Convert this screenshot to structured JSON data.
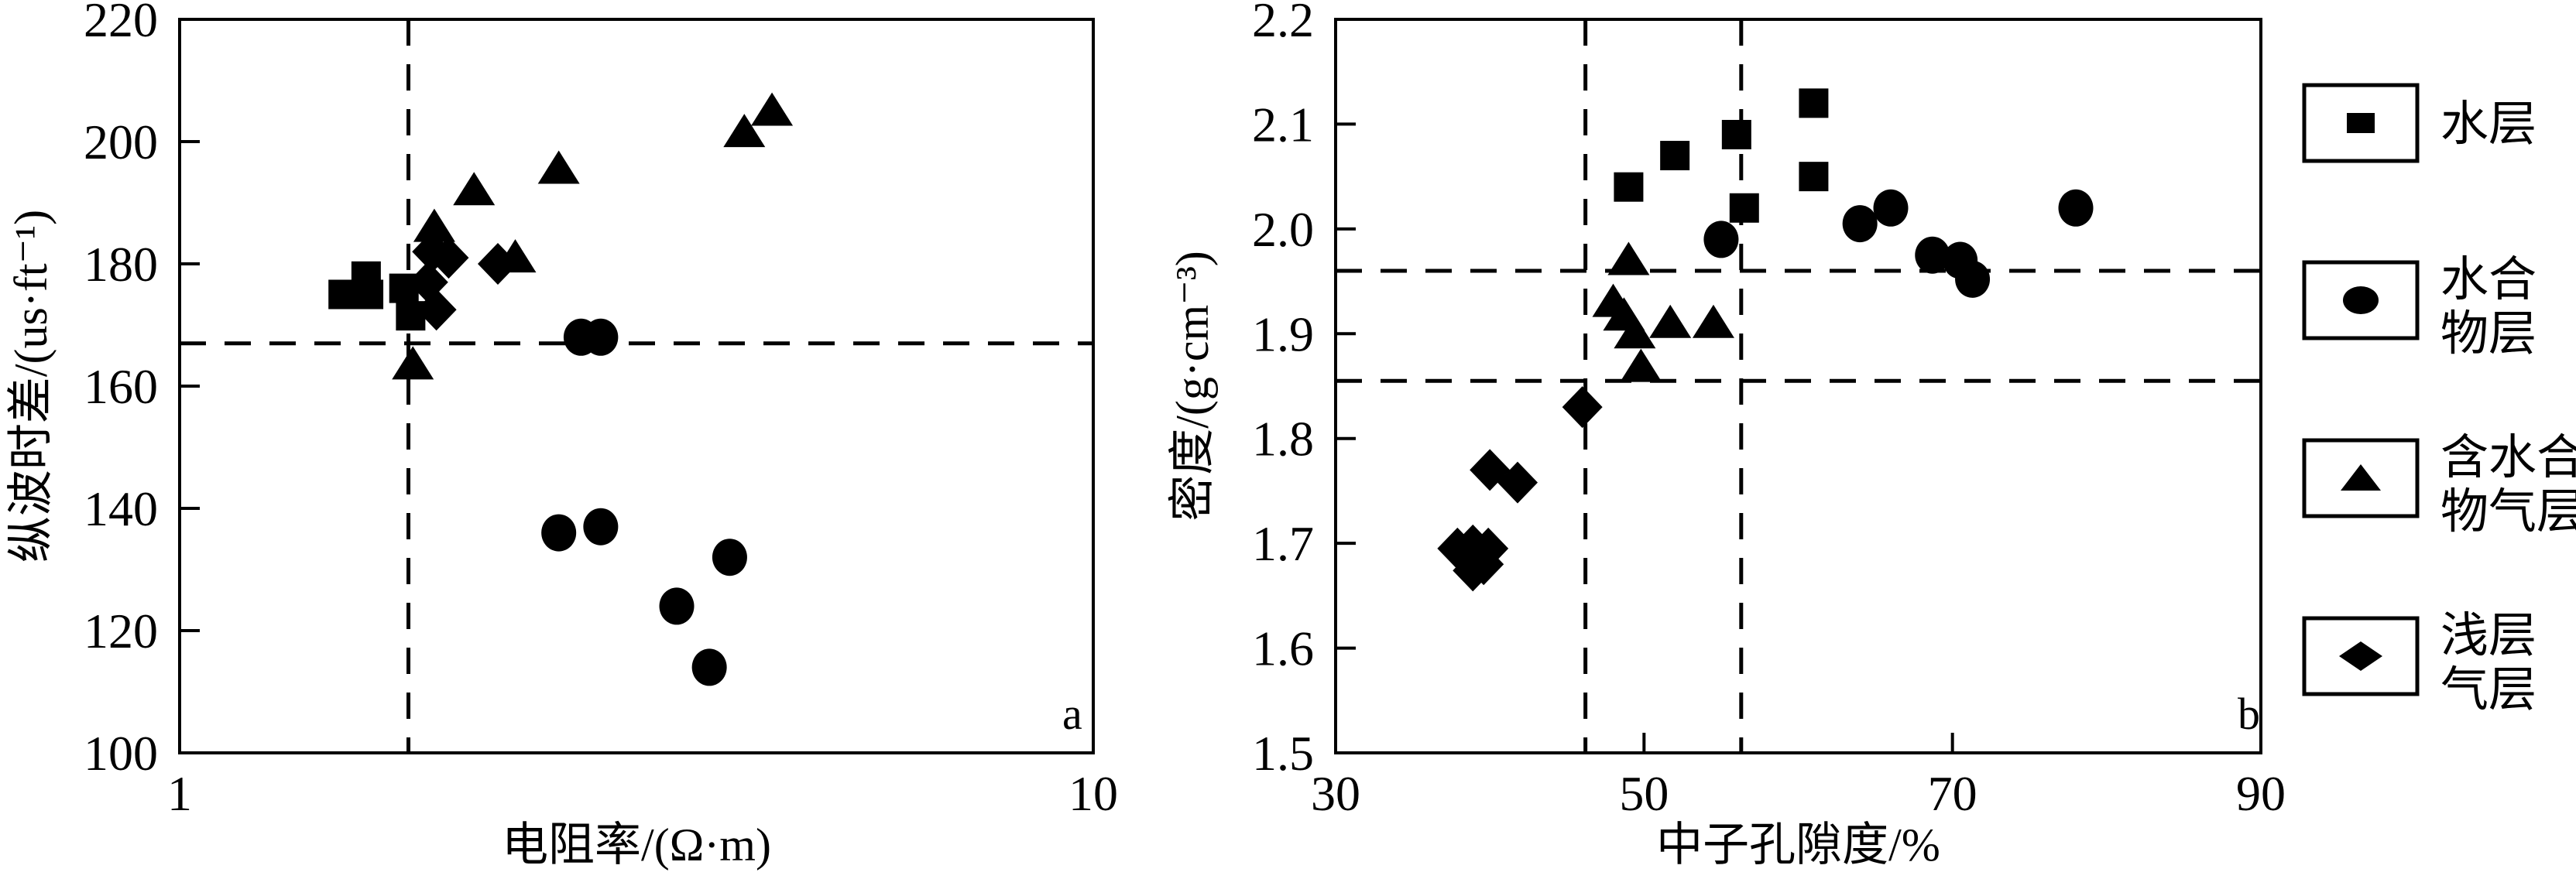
{
  "figure": {
    "background": "#ffffff",
    "ink": "#000000"
  },
  "legend": {
    "entries": [
      {
        "marker": "square",
        "label_lines": [
          "水层"
        ]
      },
      {
        "marker": "circle",
        "label_lines": [
          "水合",
          "物层"
        ]
      },
      {
        "marker": "triangle",
        "label_lines": [
          "含水合",
          "物气层"
        ]
      },
      {
        "marker": "diamond",
        "label_lines": [
          "浅层",
          "气层"
        ]
      }
    ]
  },
  "chart_data": [
    {
      "id": "a",
      "type": "scatter",
      "panel_label": "a",
      "xscale": "log",
      "xlabel": "电阻率/(Ω·m)",
      "ylabel": "纵波时差/(us·ft⁻¹)",
      "xlim": [
        1,
        10
      ],
      "ylim": [
        100,
        220
      ],
      "xticks": [
        {
          "v": 1,
          "t": "1"
        },
        {
          "v": 10,
          "t": "10"
        }
      ],
      "yticks": [
        {
          "v": 100,
          "t": "100"
        },
        {
          "v": 120,
          "t": "120"
        },
        {
          "v": 140,
          "t": "140"
        },
        {
          "v": 160,
          "t": "160"
        },
        {
          "v": 180,
          "t": "180"
        },
        {
          "v": 200,
          "t": "200"
        },
        {
          "v": 220,
          "t": "220"
        }
      ],
      "dashed_lines": {
        "vertical_x": [
          1.78
        ],
        "horizontal_y": [
          167
        ]
      },
      "series": [
        {
          "name": "水层",
          "marker": "square",
          "points": [
            [
              1.51,
              175
            ],
            [
              1.6,
              178
            ],
            [
              1.61,
              175
            ],
            [
              1.76,
              176
            ],
            [
              1.79,
              171.5
            ]
          ]
        },
        {
          "name": "含水合物气层",
          "marker": "triangle",
          "points": [
            [
              1.8,
              163.5
            ],
            [
              1.9,
              186
            ],
            [
              2.1,
              192
            ],
            [
              2.33,
              181
            ],
            [
              2.6,
              195.5
            ],
            [
              4.15,
              201.5
            ],
            [
              4.45,
              205
            ]
          ]
        },
        {
          "name": "浅层气层",
          "marker": "diamond",
          "points": [
            [
              1.87,
              177
            ],
            [
              1.89,
              182
            ],
            [
              1.97,
              181
            ],
            [
              2.23,
              180
            ],
            [
              1.91,
              172.5
            ]
          ]
        },
        {
          "name": "水合物层",
          "marker": "circle",
          "points": [
            [
              2.75,
              168
            ],
            [
              2.89,
              168
            ],
            [
              2.6,
              136
            ],
            [
              2.89,
              137
            ],
            [
              3.5,
              124
            ],
            [
              4.0,
              132
            ],
            [
              3.8,
              114
            ]
          ]
        }
      ]
    },
    {
      "id": "b",
      "type": "scatter",
      "panel_label": "b",
      "xscale": "linear",
      "xlabel": "中子孔隙度/%",
      "ylabel": "密度/(g·cm⁻³)",
      "xlim": [
        30,
        90
      ],
      "ylim": [
        1.5,
        2.2
      ],
      "xticks": [
        {
          "v": 30,
          "t": "30"
        },
        {
          "v": 50,
          "t": "50"
        },
        {
          "v": 70,
          "t": "70"
        },
        {
          "v": 90,
          "t": "90"
        }
      ],
      "yticks": [
        {
          "v": 1.5,
          "t": "1.5"
        },
        {
          "v": 1.6,
          "t": "1.6"
        },
        {
          "v": 1.7,
          "t": "1.7"
        },
        {
          "v": 1.8,
          "t": "1.8"
        },
        {
          "v": 1.9,
          "t": "1.9"
        },
        {
          "v": 2.0,
          "t": "2.0"
        },
        {
          "v": 2.1,
          "t": "2.1"
        },
        {
          "v": 2.2,
          "t": "2.2"
        }
      ],
      "dashed_lines": {
        "vertical_x": [
          46.2,
          56.3
        ],
        "horizontal_y": [
          1.96,
          1.855
        ]
      },
      "series": [
        {
          "name": "水层",
          "marker": "square",
          "points": [
            [
              49,
              2.04
            ],
            [
              52,
              2.07
            ],
            [
              56,
              2.09
            ],
            [
              56.5,
              2.02
            ],
            [
              61,
              2.12
            ],
            [
              61,
              2.05
            ]
          ]
        },
        {
          "name": "含水合物气层",
          "marker": "triangle",
          "points": [
            [
              49,
              1.97
            ],
            [
              48,
              1.93
            ],
            [
              48.7,
              1.917
            ],
            [
              49.4,
              1.9
            ],
            [
              49.8,
              1.868
            ],
            [
              51.7,
              1.91
            ],
            [
              54.5,
              1.91
            ]
          ]
        },
        {
          "name": "浅层气层",
          "marker": "diamond",
          "points": [
            [
              46,
              1.83
            ],
            [
              40,
              1.77
            ],
            [
              41.8,
              1.758
            ],
            [
              37.9,
              1.695
            ],
            [
              38.9,
              1.698
            ],
            [
              39.9,
              1.695
            ],
            [
              38.9,
              1.674
            ],
            [
              39.6,
              1.68
            ]
          ]
        },
        {
          "name": "水合物层",
          "marker": "circle",
          "points": [
            [
              55,
              1.99
            ],
            [
              64,
              2.005
            ],
            [
              66,
              2.02
            ],
            [
              68.7,
              1.975
            ],
            [
              70.5,
              1.97
            ],
            [
              71.3,
              1.952
            ],
            [
              78,
              2.02
            ]
          ]
        }
      ]
    }
  ]
}
